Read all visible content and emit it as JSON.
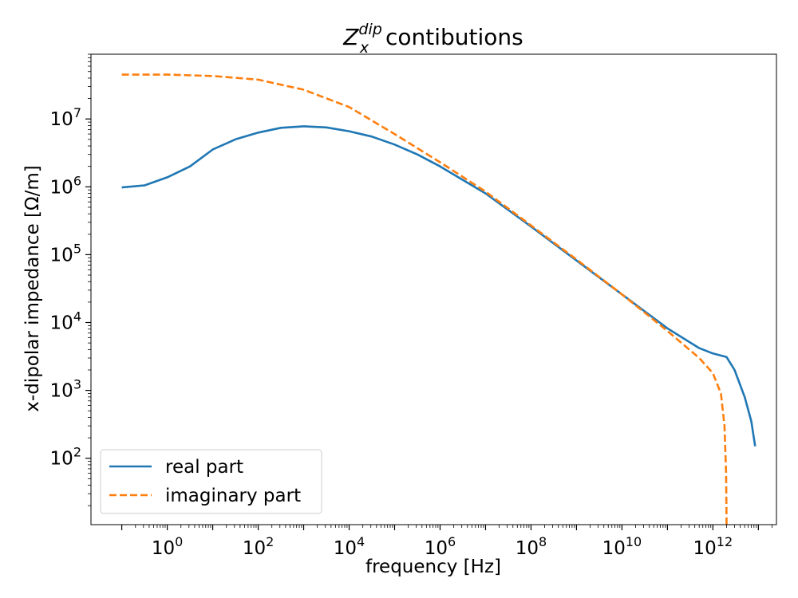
{
  "chart_data": {
    "type": "line",
    "title": {
      "base": "Z",
      "sub": "x",
      "sup": "dip",
      "rest": " contibutions"
    },
    "xlabel": "frequency [Hz]",
    "ylabel": "x-dipolar impedance [Ω/m]",
    "x_scale": "log",
    "y_scale": "log",
    "xlim": [
      0.021,
      25000000000000.0
    ],
    "ylim": [
      10.5,
      90000000.0
    ],
    "x_ticks": [
      {
        "value": 1,
        "base": "10",
        "exp": "0"
      },
      {
        "value": 100,
        "base": "10",
        "exp": "2"
      },
      {
        "value": 10000,
        "base": "10",
        "exp": "4"
      },
      {
        "value": 1000000,
        "base": "10",
        "exp": "6"
      },
      {
        "value": 100000000,
        "base": "10",
        "exp": "8"
      },
      {
        "value": 10000000000,
        "base": "10",
        "exp": "10"
      },
      {
        "value": 1000000000000,
        "base": "10",
        "exp": "12"
      }
    ],
    "y_ticks": [
      {
        "value": 100,
        "base": "10",
        "exp": "2"
      },
      {
        "value": 1000,
        "base": "10",
        "exp": "3"
      },
      {
        "value": 10000,
        "base": "10",
        "exp": "4"
      },
      {
        "value": 100000,
        "base": "10",
        "exp": "5"
      },
      {
        "value": 1000000,
        "base": "10",
        "exp": "6"
      },
      {
        "value": 10000000,
        "base": "10",
        "exp": "7"
      }
    ],
    "grid": false,
    "legend": {
      "placement": "lower-left"
    },
    "series": [
      {
        "name": "real part",
        "color": "#1f77b4",
        "dash": "solid",
        "points": [
          [
            0.1,
            980000
          ],
          [
            0.316,
            1050000
          ],
          [
            1,
            1380000
          ],
          [
            3.16,
            2000000
          ],
          [
            10,
            3550000
          ],
          [
            31.6,
            5000000
          ],
          [
            100,
            6300000
          ],
          [
            316,
            7400000
          ],
          [
            1000,
            7800000
          ],
          [
            3160,
            7500000
          ],
          [
            10000,
            6600000
          ],
          [
            31600,
            5500000
          ],
          [
            100000,
            4200000
          ],
          [
            316000,
            3000000
          ],
          [
            1000000,
            2000000
          ],
          [
            10000000,
            800000
          ],
          [
            100000000,
            260000
          ],
          [
            1000000000,
            82000
          ],
          [
            10000000000,
            26000
          ],
          [
            100000000000,
            8200
          ],
          [
            500000000000,
            4200
          ],
          [
            1000000000000,
            3500
          ],
          [
            2000000000000,
            3100
          ],
          [
            3000000000000,
            2000
          ],
          [
            5000000000000,
            800
          ],
          [
            7000000000000,
            350
          ],
          [
            8500000000000,
            150
          ]
        ]
      },
      {
        "name": "imaginary part",
        "color": "#ff7f0e",
        "dash": "dashed",
        "points": [
          [
            0.1,
            45000000
          ],
          [
            1,
            45000000
          ],
          [
            10,
            43000000
          ],
          [
            100,
            38000000
          ],
          [
            1000,
            27000000
          ],
          [
            10000,
            15000000
          ],
          [
            100000,
            6000000
          ],
          [
            1000000,
            2300000
          ],
          [
            10000000,
            850000
          ],
          [
            100000000,
            270000
          ],
          [
            1000000000,
            85000
          ],
          [
            10000000000,
            26000
          ],
          [
            100000000000,
            7500
          ],
          [
            500000000000,
            3000
          ],
          [
            1000000000000,
            1800
          ],
          [
            1500000000000,
            900
          ],
          [
            1800000000000,
            300
          ],
          [
            1950000000000,
            60
          ],
          [
            2000000000000,
            10.5
          ]
        ]
      }
    ]
  }
}
